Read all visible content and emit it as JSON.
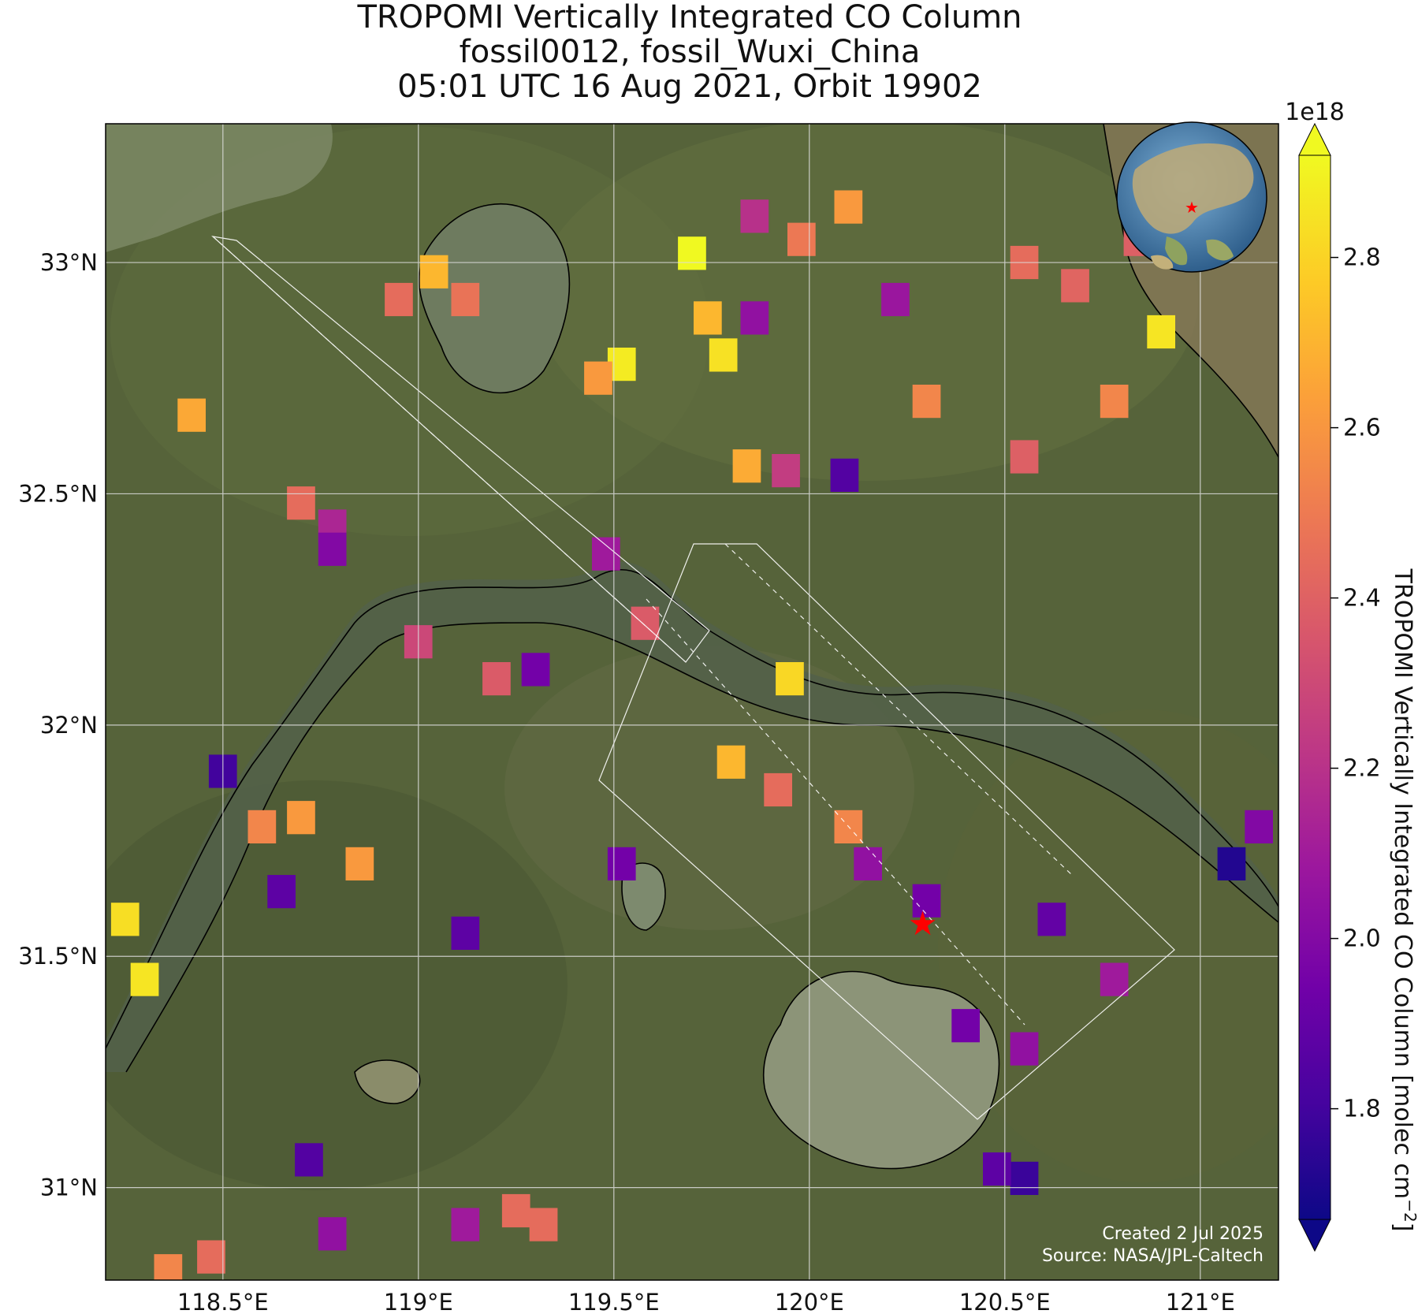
{
  "title": {
    "line1": "TROPOMI Vertically Integrated CO Column",
    "line2": "fossil0012, fossil_Wuxi_China",
    "line3": "05:01 UTC 16 Aug 2021, Orbit 19902"
  },
  "map": {
    "lon_range": [
      118.2,
      121.2
    ],
    "lat_range": [
      30.8,
      33.3
    ],
    "lon_ticks": [
      {
        "value": 118.5,
        "label": "118.5°E"
      },
      {
        "value": 119.0,
        "label": "119°E"
      },
      {
        "value": 119.5,
        "label": "119.5°E"
      },
      {
        "value": 120.0,
        "label": "120°E"
      },
      {
        "value": 120.5,
        "label": "120.5°E"
      },
      {
        "value": 121.0,
        "label": "121°E"
      }
    ],
    "lat_ticks": [
      {
        "value": 33.0,
        "label": "33°N"
      },
      {
        "value": 32.5,
        "label": "32.5°N"
      },
      {
        "value": 32.0,
        "label": "32°N"
      },
      {
        "value": 31.5,
        "label": "31.5°N"
      },
      {
        "value": 31.0,
        "label": "31°N"
      }
    ],
    "grid": true,
    "target": {
      "lon": 120.29,
      "lat": 31.57,
      "marker": "red-star"
    },
    "basemap": "satellite imagery",
    "inset_globe": {
      "position": "top-right",
      "marker": "red-star"
    }
  },
  "colorbar": {
    "label": "TROPOMI Vertically Integrated CO Column [molec cm",
    "label_sup": "−2",
    "label_end": "]",
    "multiplier": "1e18",
    "min": 1.67,
    "max": 2.92,
    "colormap": "plasma",
    "extend": "both",
    "ticks": [
      {
        "value": 1.8,
        "label": "1.8"
      },
      {
        "value": 2.0,
        "label": "2.0"
      },
      {
        "value": 2.2,
        "label": "2.2"
      },
      {
        "value": 2.4,
        "label": "2.4"
      },
      {
        "value": 2.6,
        "label": "2.6"
      },
      {
        "value": 2.8,
        "label": "2.8"
      }
    ]
  },
  "credits": {
    "created": "Created 2 Jul 2025",
    "source": "Source: NASA/JPL-Caltech"
  },
  "colors": {
    "plasma": [
      "#0d0887",
      "#46039f",
      "#7201a8",
      "#9c179e",
      "#bd3786",
      "#d8576b",
      "#ed7953",
      "#fb9f3a",
      "#fdca26",
      "#f0f921"
    ],
    "target_marker": "#ff0000",
    "grid": "#dddddd",
    "swath_outline": "#ffffff"
  },
  "chart_data": {
    "type": "heatmap",
    "units": "molec cm^-2 (x1e18)",
    "pixels": [
      {
        "lon": 118.42,
        "lat": 32.67,
        "value": 2.67
      },
      {
        "lon": 118.95,
        "lat": 32.92,
        "value": 2.45
      },
      {
        "lon": 119.04,
        "lat": 32.98,
        "value": 2.72
      },
      {
        "lon": 119.12,
        "lat": 32.92,
        "value": 2.48
      },
      {
        "lon": 119.52,
        "lat": 32.78,
        "value": 2.88
      },
      {
        "lon": 119.46,
        "lat": 32.75,
        "value": 2.62
      },
      {
        "lon": 119.7,
        "lat": 33.02,
        "value": 2.92
      },
      {
        "lon": 119.74,
        "lat": 32.88,
        "value": 2.72
      },
      {
        "lon": 119.78,
        "lat": 32.8,
        "value": 2.85
      },
      {
        "lon": 119.86,
        "lat": 32.88,
        "value": 2.05
      },
      {
        "lon": 119.86,
        "lat": 33.1,
        "value": 2.2
      },
      {
        "lon": 119.98,
        "lat": 33.05,
        "value": 2.5
      },
      {
        "lon": 120.1,
        "lat": 33.12,
        "value": 2.62
      },
      {
        "lon": 120.22,
        "lat": 32.92,
        "value": 2.08
      },
      {
        "lon": 120.3,
        "lat": 32.7,
        "value": 2.55
      },
      {
        "lon": 120.55,
        "lat": 33.0,
        "value": 2.45
      },
      {
        "lon": 120.68,
        "lat": 32.95,
        "value": 2.42
      },
      {
        "lon": 120.84,
        "lat": 33.05,
        "value": 2.4
      },
      {
        "lon": 120.9,
        "lat": 32.85,
        "value": 2.86
      },
      {
        "lon": 120.78,
        "lat": 32.7,
        "value": 2.55
      },
      {
        "lon": 120.55,
        "lat": 32.58,
        "value": 2.4
      },
      {
        "lon": 119.84,
        "lat": 32.56,
        "value": 2.68
      },
      {
        "lon": 119.94,
        "lat": 32.55,
        "value": 2.25
      },
      {
        "lon": 120.09,
        "lat": 32.54,
        "value": 1.85
      },
      {
        "lon": 118.7,
        "lat": 32.48,
        "value": 2.45
      },
      {
        "lon": 118.78,
        "lat": 32.43,
        "value": 2.15
      },
      {
        "lon": 118.78,
        "lat": 32.38,
        "value": 2.0
      },
      {
        "lon": 119.48,
        "lat": 32.37,
        "value": 2.1
      },
      {
        "lon": 119.58,
        "lat": 32.22,
        "value": 2.38
      },
      {
        "lon": 119.0,
        "lat": 32.18,
        "value": 2.3
      },
      {
        "lon": 119.2,
        "lat": 32.1,
        "value": 2.38
      },
      {
        "lon": 119.3,
        "lat": 32.12,
        "value": 1.95
      },
      {
        "lon": 119.95,
        "lat": 32.1,
        "value": 2.82
      },
      {
        "lon": 119.8,
        "lat": 31.92,
        "value": 2.72
      },
      {
        "lon": 119.92,
        "lat": 31.86,
        "value": 2.45
      },
      {
        "lon": 120.1,
        "lat": 31.78,
        "value": 2.55
      },
      {
        "lon": 120.15,
        "lat": 31.7,
        "value": 2.05
      },
      {
        "lon": 120.3,
        "lat": 31.62,
        "value": 1.95
      },
      {
        "lon": 118.25,
        "lat": 31.58,
        "value": 2.84
      },
      {
        "lon": 118.3,
        "lat": 31.45,
        "value": 2.86
      },
      {
        "lon": 118.5,
        "lat": 31.9,
        "value": 1.8
      },
      {
        "lon": 118.6,
        "lat": 31.78,
        "value": 2.55
      },
      {
        "lon": 118.7,
        "lat": 31.8,
        "value": 2.62
      },
      {
        "lon": 118.85,
        "lat": 31.7,
        "value": 2.62
      },
      {
        "lon": 118.65,
        "lat": 31.64,
        "value": 1.88
      },
      {
        "lon": 119.12,
        "lat": 31.55,
        "value": 1.88
      },
      {
        "lon": 119.52,
        "lat": 31.7,
        "value": 1.95
      },
      {
        "lon": 120.62,
        "lat": 31.58,
        "value": 1.9
      },
      {
        "lon": 120.78,
        "lat": 31.45,
        "value": 2.1
      },
      {
        "lon": 121.08,
        "lat": 31.7,
        "value": 1.72
      },
      {
        "lon": 121.15,
        "lat": 31.78,
        "value": 2.0
      },
      {
        "lon": 120.4,
        "lat": 31.35,
        "value": 1.95
      },
      {
        "lon": 120.55,
        "lat": 31.3,
        "value": 2.05
      },
      {
        "lon": 120.55,
        "lat": 31.02,
        "value": 1.78
      },
      {
        "lon": 120.48,
        "lat": 31.04,
        "value": 1.88
      },
      {
        "lon": 118.72,
        "lat": 31.06,
        "value": 1.85
      },
      {
        "lon": 119.12,
        "lat": 30.92,
        "value": 2.1
      },
      {
        "lon": 119.25,
        "lat": 30.95,
        "value": 2.45
      },
      {
        "lon": 119.32,
        "lat": 30.92,
        "value": 2.45
      },
      {
        "lon": 118.36,
        "lat": 30.82,
        "value": 2.55
      },
      {
        "lon": 118.47,
        "lat": 30.85,
        "value": 2.45
      },
      {
        "lon": 118.78,
        "lat": 30.9,
        "value": 2.05
      }
    ]
  }
}
